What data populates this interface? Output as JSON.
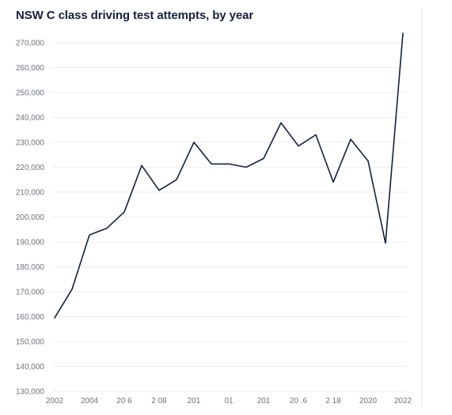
{
  "chart_data": {
    "type": "line",
    "title": "NSW C class driving test attempts, by year",
    "xlabel": "",
    "ylabel": "",
    "x": [
      2002,
      2003,
      2004,
      2005,
      2006,
      2007,
      2008,
      2009,
      2010,
      2011,
      2012,
      2013,
      2014,
      2015,
      2016,
      2017,
      2018,
      2019,
      2020,
      2021,
      2022
    ],
    "series": [
      {
        "values": [
          159500,
          171000,
          192800,
          195500,
          202000,
          220700,
          210700,
          215000,
          230000,
          221300,
          221300,
          220000,
          223500,
          237800,
          228500,
          233000,
          214000,
          231200,
          222500,
          189500,
          273800
        ],
        "color": "#14213d"
      }
    ],
    "xticks": [
      "2002",
      "2004",
      "20 6",
      "2 08",
      "201",
      "01",
      "201",
      "20 .6",
      "2 18",
      "2020",
      "2022"
    ],
    "xtick_values": [
      2002,
      2004,
      2006,
      2008,
      2010,
      2012,
      2014,
      2016,
      2018,
      2020,
      2022
    ],
    "yticks": [
      "130,000",
      "140,000",
      "150,000",
      "160,000",
      "170,000",
      "180,000",
      "190,000",
      "200,000",
      "210,000",
      "220,000",
      "230,000",
      "240,000",
      "250,000",
      "260,000",
      "270,000"
    ],
    "ytick_values": [
      130000,
      140000,
      150000,
      160000,
      170000,
      180000,
      190000,
      200000,
      210000,
      220000,
      230000,
      240000,
      250000,
      260000,
      270000
    ],
    "xlim": [
      2002,
      2022
    ],
    "ylim": [
      130000,
      275000
    ],
    "grid": true,
    "legend": "none"
  }
}
